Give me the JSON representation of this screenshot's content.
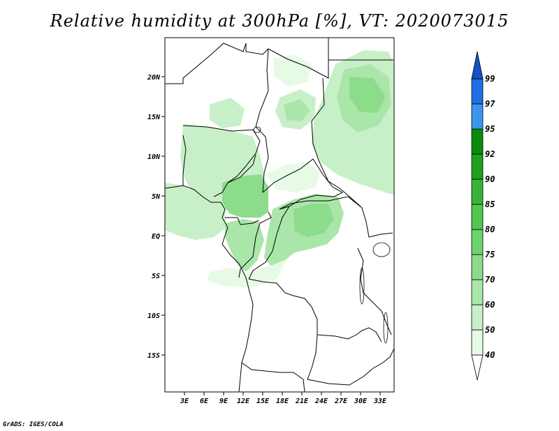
{
  "title": "Relative humidity at 300hPa [%], VT: 2020073015",
  "credit": "GrADS: IGES/COLA",
  "map": {
    "lat_labels": [
      "20N",
      "15N",
      "10N",
      "5N",
      "EQ",
      "5S",
      "10S",
      "15S"
    ],
    "lon_labels": [
      "3E",
      "6E",
      "9E",
      "12E",
      "15E",
      "18E",
      "21E",
      "24E",
      "27E",
      "30E",
      "33E"
    ]
  },
  "colorbar": {
    "levels": [
      "40",
      "50",
      "60",
      "70",
      "75",
      "80",
      "85",
      "90",
      "92",
      "95",
      "97",
      "99"
    ],
    "colors": [
      "#ffffff",
      "#e6fae6",
      "#c8f0c8",
      "#aae6aa",
      "#8cdc8c",
      "#6ed26e",
      "#50c850",
      "#37b437",
      "#1ea01e",
      "#0a8c0a",
      "#3c96f0",
      "#1e6ee6",
      "#1450c8"
    ]
  }
}
